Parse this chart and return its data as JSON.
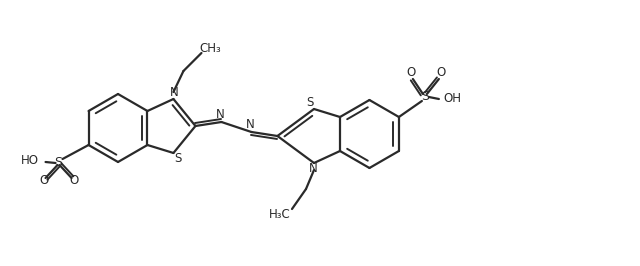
{
  "bg": "#ffffff",
  "lc": "#2a2a2a",
  "lw": 1.6,
  "lw_inner": 1.4,
  "figsize": [
    6.4,
    2.66
  ],
  "dpi": 100,
  "xlim": [
    0,
    640
  ],
  "ylim": [
    0,
    266
  ]
}
